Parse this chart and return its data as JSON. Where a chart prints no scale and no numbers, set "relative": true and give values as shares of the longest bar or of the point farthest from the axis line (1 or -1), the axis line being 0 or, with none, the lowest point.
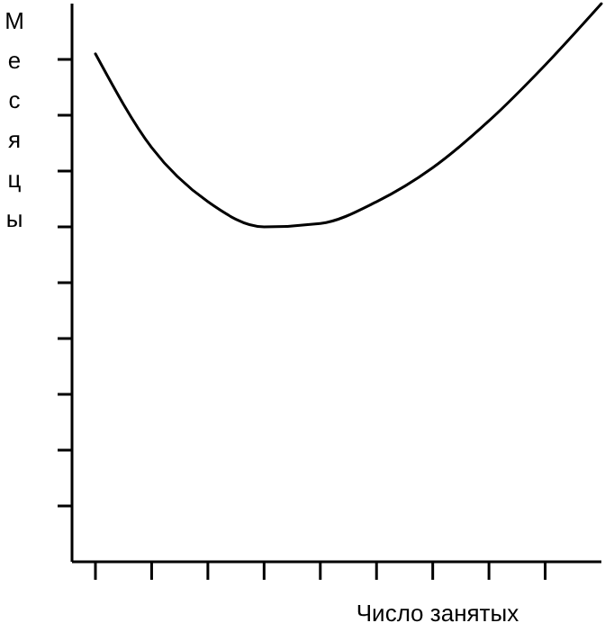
{
  "chart_data": {
    "type": "line",
    "relative": true,
    "xlabel": "Число занятых",
    "ylabel": "Месяцы",
    "categories": [
      null,
      null,
      null,
      null,
      null,
      null,
      null,
      null,
      null,
      null
    ],
    "series": [
      {
        "color": "#000000",
        "values": [
          0.91,
          0.742,
          0.645,
          0.6,
          0.606,
          0.645,
          0.706,
          0.79,
          0.89,
          1.0
        ]
      }
    ],
    "marker": "none",
    "line_style": "solid",
    "grid": false
  }
}
